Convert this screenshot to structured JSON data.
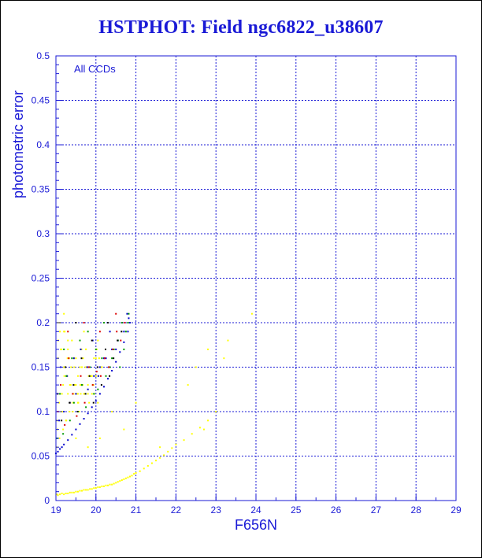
{
  "chart_data": {
    "type": "scatter",
    "title": "HSTPHOT: Field ngc6822_u38607",
    "xlabel": "F656N",
    "ylabel": "photometric error",
    "annotation": "All CCDs",
    "xlim": [
      19,
      29
    ],
    "ylim": [
      0,
      0.5
    ],
    "x_ticks": [
      "19",
      "20",
      "21",
      "22",
      "23",
      "24",
      "25",
      "26",
      "27",
      "28",
      "29"
    ],
    "y_ticks": [
      "0",
      "0.05",
      "0.1",
      "0.15",
      "0.2",
      "0.25",
      "0.3",
      "0.35",
      "0.4",
      "0.45",
      "0.5"
    ],
    "grid": true,
    "legend": "none",
    "colors": {
      "axis": "#1a1ad6",
      "title": "#1a1ad6",
      "grid": "#1a1ad6"
    },
    "series": [
      {
        "color": "#ffff00",
        "x": [
          19.02,
          19.05,
          19.1,
          19.15,
          19.2,
          19.25,
          19.3,
          19.35,
          19.4,
          19.45,
          19.5,
          19.55,
          19.6,
          19.65,
          19.7,
          19.75,
          19.8,
          19.85,
          19.9,
          19.95,
          20.0,
          20.05,
          20.1,
          20.15,
          20.2,
          20.25,
          20.3,
          20.35,
          20.4,
          20.45,
          20.5,
          20.55,
          20.6,
          20.65,
          20.7,
          20.75,
          20.8,
          20.85,
          20.9,
          20.95,
          21.0,
          21.1,
          21.2,
          21.3,
          21.4,
          21.5,
          21.6,
          21.7,
          21.8,
          21.9,
          22.0,
          22.2,
          22.4,
          22.6,
          22.8,
          23.0,
          19.05,
          19.1,
          19.2,
          19.3,
          19.05,
          19.12,
          19.2,
          19.28,
          19.35,
          19.45,
          19.55,
          19.65,
          19.75,
          19.85,
          19.95,
          20.05,
          20.15,
          19.08,
          19.18,
          19.3,
          19.42,
          19.55,
          19.68,
          19.8,
          19.92,
          20.05,
          19.03,
          19.15,
          19.27,
          19.38,
          19.5,
          19.62,
          19.75,
          19.88,
          20.0,
          20.12,
          19.06,
          19.14,
          19.22,
          19.33,
          19.44,
          19.56,
          19.67,
          19.78,
          19.9,
          20.02,
          19.04,
          19.16,
          19.25,
          19.36,
          19.47,
          19.58,
          19.7,
          19.82,
          19.93,
          20.08,
          19.1,
          19.2,
          19.3,
          19.4,
          19.5,
          19.6,
          19.7,
          19.8,
          19.9,
          20.0,
          19.02,
          19.09,
          19.18,
          19.26,
          19.34,
          19.43,
          19.52,
          19.61,
          19.72,
          19.83,
          19.94,
          20.06,
          19.05,
          19.13,
          19.21,
          19.29,
          19.37,
          19.46,
          19.55,
          19.64,
          19.74,
          19.85,
          19.96,
          19.5,
          19.8,
          20.1,
          20.4,
          20.7,
          21.0,
          21.6,
          22.3,
          22.8,
          23.2,
          23.3,
          23.9,
          22.5,
          22.7
        ],
        "y": [
          0.007,
          0.006,
          0.007,
          0.008,
          0.007,
          0.008,
          0.008,
          0.009,
          0.009,
          0.009,
          0.01,
          0.01,
          0.011,
          0.011,
          0.012,
          0.012,
          0.012,
          0.013,
          0.013,
          0.014,
          0.014,
          0.015,
          0.015,
          0.016,
          0.016,
          0.017,
          0.017,
          0.018,
          0.018,
          0.019,
          0.02,
          0.021,
          0.022,
          0.023,
          0.024,
          0.025,
          0.026,
          0.027,
          0.028,
          0.03,
          0.031,
          0.033,
          0.036,
          0.039,
          0.042,
          0.045,
          0.048,
          0.051,
          0.055,
          0.059,
          0.063,
          0.068,
          0.075,
          0.082,
          0.09,
          0.1,
          0.2,
          0.19,
          0.21,
          0.18,
          0.16,
          0.17,
          0.15,
          0.14,
          0.13,
          0.16,
          0.12,
          0.15,
          0.17,
          0.14,
          0.16,
          0.18,
          0.15,
          0.11,
          0.13,
          0.12,
          0.1,
          0.14,
          0.16,
          0.12,
          0.13,
          0.11,
          0.09,
          0.12,
          0.14,
          0.15,
          0.13,
          0.12,
          0.17,
          0.14,
          0.16,
          0.15,
          0.18,
          0.17,
          0.19,
          0.16,
          0.12,
          0.11,
          0.13,
          0.15,
          0.14,
          0.17,
          0.08,
          0.1,
          0.09,
          0.11,
          0.13,
          0.1,
          0.12,
          0.14,
          0.13,
          0.16,
          0.2,
          0.19,
          0.17,
          0.18,
          0.16,
          0.15,
          0.19,
          0.13,
          0.12,
          0.14,
          0.06,
          0.07,
          0.08,
          0.09,
          0.1,
          0.11,
          0.12,
          0.13,
          0.12,
          0.11,
          0.13,
          0.14,
          0.12,
          0.1,
          0.14,
          0.16,
          0.13,
          0.15,
          0.11,
          0.17,
          0.15,
          0.14,
          0.12,
          0.07,
          0.06,
          0.07,
          0.1,
          0.08,
          0.11,
          0.06,
          0.13,
          0.17,
          0.16,
          0.18,
          0.21,
          0.15,
          0.08
        ]
      },
      {
        "color": "#0000cc",
        "x": [
          19.0,
          19.05,
          19.1,
          19.15,
          19.2,
          19.3,
          19.4,
          19.5,
          19.6,
          19.7,
          19.8,
          19.9,
          20.0,
          20.1,
          20.2,
          20.3,
          20.4,
          20.5,
          20.6,
          20.7,
          20.8,
          20.85,
          19.08,
          19.2,
          19.35,
          19.5,
          19.65,
          19.8,
          19.95,
          20.1,
          20.25,
          20.4,
          20.55,
          20.7,
          20.82,
          19.12,
          19.28,
          19.45,
          19.62,
          19.78,
          19.92,
          20.06,
          20.2,
          20.35,
          20.5,
          20.65,
          20.78
        ],
        "y": [
          0.053,
          0.055,
          0.058,
          0.06,
          0.063,
          0.068,
          0.074,
          0.08,
          0.086,
          0.092,
          0.098,
          0.105,
          0.112,
          0.12,
          0.128,
          0.137,
          0.146,
          0.156,
          0.167,
          0.178,
          0.19,
          0.2,
          0.09,
          0.1,
          0.11,
          0.12,
          0.13,
          0.125,
          0.14,
          0.15,
          0.16,
          0.17,
          0.18,
          0.19,
          0.205,
          0.15,
          0.14,
          0.16,
          0.17,
          0.15,
          0.18,
          0.14,
          0.16,
          0.19,
          0.17,
          0.2,
          0.21
        ]
      },
      {
        "color": "#009900",
        "x": [
          19.03,
          19.1,
          19.18,
          19.26,
          19.35,
          19.45,
          19.55,
          19.65,
          19.75,
          19.85,
          19.95,
          20.05,
          20.15,
          20.25,
          20.35,
          20.45,
          20.55,
          20.65,
          20.75,
          20.82,
          19.2,
          19.4,
          19.6,
          19.8,
          20.0,
          20.2,
          20.4,
          20.6,
          20.7,
          20.8
        ],
        "y": [
          0.07,
          0.12,
          0.075,
          0.14,
          0.09,
          0.11,
          0.1,
          0.13,
          0.105,
          0.15,
          0.12,
          0.125,
          0.16,
          0.14,
          0.15,
          0.17,
          0.18,
          0.2,
          0.19,
          0.21,
          0.17,
          0.16,
          0.18,
          0.19,
          0.17,
          0.2,
          0.16,
          0.15,
          0.17,
          0.2
        ]
      },
      {
        "color": "#dd0000",
        "x": [
          19.05,
          19.12,
          19.22,
          19.32,
          19.42,
          19.52,
          19.62,
          19.72,
          19.82,
          19.92,
          20.02,
          20.12,
          20.22,
          20.32,
          20.42,
          20.52,
          20.62,
          20.72,
          19.3,
          19.7,
          20.1,
          20.5
        ],
        "y": [
          0.1,
          0.13,
          0.085,
          0.16,
          0.12,
          0.095,
          0.14,
          0.11,
          0.15,
          0.13,
          0.145,
          0.14,
          0.16,
          0.15,
          0.17,
          0.19,
          0.18,
          0.2,
          0.19,
          0.2,
          0.19,
          0.21
        ]
      },
      {
        "color": "#000000",
        "x": [
          19.04,
          19.14,
          19.24,
          19.34,
          19.44,
          19.54,
          19.64,
          19.74,
          19.84,
          19.94,
          20.04,
          20.14,
          20.24,
          20.34,
          20.44,
          20.54,
          20.64,
          19.5,
          19.9,
          20.3
        ],
        "y": [
          0.12,
          0.09,
          0.15,
          0.11,
          0.13,
          0.1,
          0.16,
          0.12,
          0.14,
          0.11,
          0.15,
          0.13,
          0.17,
          0.14,
          0.16,
          0.18,
          0.19,
          0.2,
          0.18,
          0.2
        ]
      }
    ]
  }
}
